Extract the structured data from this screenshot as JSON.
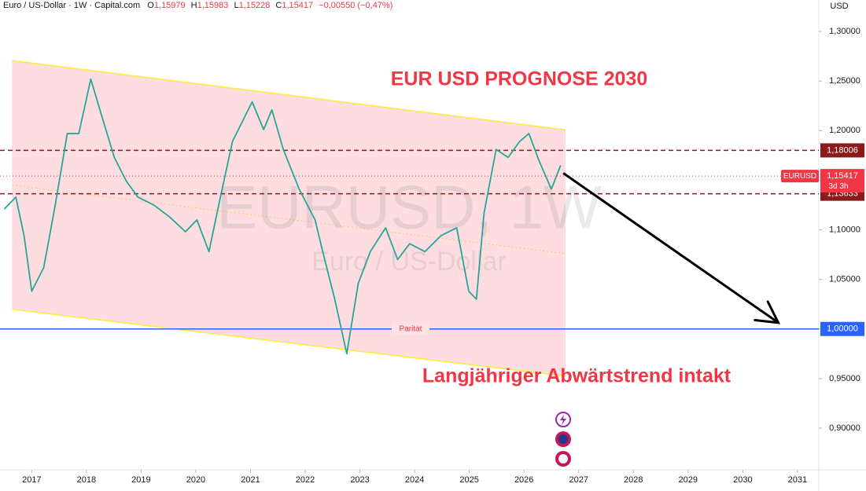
{
  "chart_data": {
    "type": "line",
    "header": {
      "instrument": "Euro / US-Dollar · 1W · Capital.com",
      "ohlc": [
        {
          "key": "O",
          "value": "1,15979"
        },
        {
          "key": "H",
          "value": "1,15983"
        },
        {
          "key": "L",
          "value": "1,15228"
        },
        {
          "key": "C",
          "value": "1,15417"
        }
      ],
      "change": "−0,00550 (−0,47%)"
    },
    "currency": "USD",
    "watermark": {
      "symbol": "EURUSD, 1W",
      "description": "Euro / US-Dollar"
    },
    "title": "EUR USD PROGNOSE 2030",
    "annotation": "Langjähriger Abwärtstrend intakt",
    "x": [
      2016.5,
      2016.71,
      2016.86,
      2017.0,
      2017.22,
      2017.43,
      2017.65,
      2017.86,
      2018.08,
      2018.29,
      2018.51,
      2018.73,
      2018.94,
      2019.23,
      2019.52,
      2019.81,
      2020.02,
      2020.24,
      2020.45,
      2020.67,
      2021.03,
      2021.24,
      2021.39,
      2021.6,
      2021.89,
      2022.18,
      2022.32,
      2022.54,
      2022.76,
      2022.97,
      2023.19,
      2023.47,
      2023.69,
      2023.91,
      2024.19,
      2024.48,
      2024.77,
      2024.99,
      2025.13,
      2025.27,
      2025.49,
      2025.71,
      2025.92,
      2026.09,
      2026.28,
      2026.5,
      2026.67
    ],
    "series": [
      {
        "color": "#26a69a",
        "values": [
          1.121,
          1.133,
          1.094,
          1.038,
          1.062,
          1.125,
          1.197,
          1.197,
          1.252,
          1.213,
          1.173,
          1.149,
          1.133,
          1.125,
          1.113,
          1.098,
          1.11,
          1.078,
          1.133,
          1.189,
          1.229,
          1.201,
          1.221,
          1.181,
          1.141,
          1.11,
          1.078,
          1.03,
          0.975,
          1.046,
          1.078,
          1.102,
          1.07,
          1.086,
          1.078,
          1.094,
          1.102,
          1.038,
          1.03,
          1.117,
          1.181,
          1.173,
          1.189,
          1.197,
          1.169,
          1.141,
          1.165
        ]
      }
    ],
    "channel": {
      "x": [
        2016.64,
        2026.76
      ],
      "upper": [
        1.2706,
        1.2008
      ],
      "lower": [
        1.0198,
        0.9524
      ],
      "mid": [
        1.145,
        1.076
      ]
    },
    "arrow": {
      "x": [
        2026.72,
        2030.65
      ],
      "y": [
        1.157,
        1.0063
      ]
    },
    "levels": [
      {
        "value": 1.18006,
        "label": "1,18006",
        "color": "#8b1a1a"
      },
      {
        "value": 1.13633,
        "label": "1,13633",
        "color": "#8b1a1a"
      }
    ],
    "current": {
      "value": 1.15417,
      "symbol": "EURUSD",
      "label": "1,15417",
      "countdown": "3d 3h",
      "color": "#f23645"
    },
    "parity": {
      "value": 1,
      "label": "1,00000",
      "name": "Parität",
      "color": "#2962ff"
    },
    "xlim": [
      2016.42,
      2031.39
    ],
    "ylim": [
      0.858,
      1.3317
    ],
    "xticks": [
      2017,
      2018,
      2019,
      2020,
      2021,
      2022,
      2023,
      2024,
      2025,
      2026,
      2027,
      2028,
      2029,
      2030,
      2031
    ],
    "yticks": [
      {
        "value": 0.9,
        "label": "0,90000"
      },
      {
        "value": 0.95,
        "label": "0,95000"
      },
      {
        "value": 1.0,
        "label": "1,00000"
      },
      {
        "value": 1.05,
        "label": "1,05000"
      },
      {
        "value": 1.1,
        "label": "1,10000"
      },
      {
        "value": 1.15,
        "label": "1,15000"
      },
      {
        "value": 1.2,
        "label": "1,20000"
      },
      {
        "value": 1.25,
        "label": "1,25000"
      },
      {
        "value": 1.3,
        "label": "1,30000"
      }
    ]
  }
}
